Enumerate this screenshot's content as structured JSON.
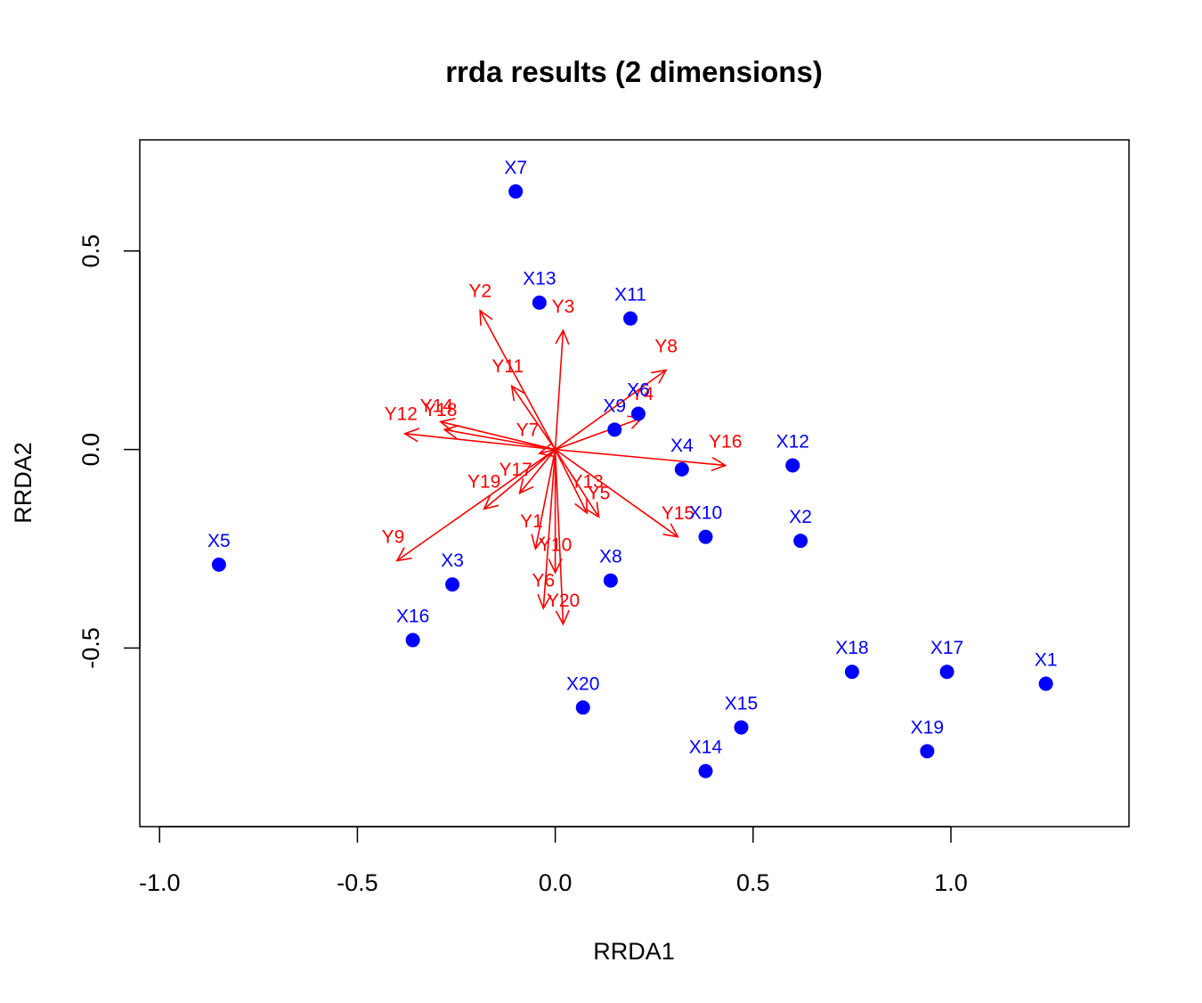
{
  "chart_data": {
    "type": "scatter",
    "title": "rrda results (2 dimensions)",
    "xlabel": "RRDA1",
    "ylabel": "RRDA2",
    "xlim": [
      -1.05,
      1.45
    ],
    "ylim": [
      -0.95,
      0.78
    ],
    "x_ticks": [
      -1.0,
      -0.5,
      0.0,
      0.5,
      1.0
    ],
    "x_tick_labels": [
      "-1.0",
      "-0.5",
      "0.0",
      "0.5",
      "1.0"
    ],
    "y_ticks": [
      -0.5,
      0.0,
      0.5
    ],
    "y_tick_labels": [
      "-0.5",
      "0.0",
      "0.5"
    ],
    "grid": false,
    "colors": {
      "points": "#0000ff",
      "arrows": "#ff0000",
      "frame": "#000000"
    },
    "points": [
      {
        "label": "X1",
        "x": 1.24,
        "y": -0.59
      },
      {
        "label": "X2",
        "x": 0.62,
        "y": -0.23
      },
      {
        "label": "X3",
        "x": -0.26,
        "y": -0.34
      },
      {
        "label": "X4",
        "x": 0.32,
        "y": -0.05
      },
      {
        "label": "X5",
        "x": -0.85,
        "y": -0.29
      },
      {
        "label": "X6",
        "x": 0.21,
        "y": 0.09
      },
      {
        "label": "X7",
        "x": -0.1,
        "y": 0.65
      },
      {
        "label": "X8",
        "x": 0.14,
        "y": -0.33
      },
      {
        "label": "X9",
        "x": 0.15,
        "y": 0.05
      },
      {
        "label": "X10",
        "x": 0.38,
        "y": -0.22
      },
      {
        "label": "X11",
        "x": 0.19,
        "y": 0.33
      },
      {
        "label": "X12",
        "x": 0.6,
        "y": -0.04
      },
      {
        "label": "X13",
        "x": -0.04,
        "y": 0.37
      },
      {
        "label": "X14",
        "x": 0.38,
        "y": -0.81
      },
      {
        "label": "X15",
        "x": 0.47,
        "y": -0.7
      },
      {
        "label": "X16",
        "x": -0.36,
        "y": -0.48
      },
      {
        "label": "X17",
        "x": 0.99,
        "y": -0.56
      },
      {
        "label": "X18",
        "x": 0.75,
        "y": -0.56
      },
      {
        "label": "X19",
        "x": 0.94,
        "y": -0.76
      },
      {
        "label": "X20",
        "x": 0.07,
        "y": -0.65
      }
    ],
    "arrows": [
      {
        "label": "Y1",
        "x": -0.05,
        "y": -0.25,
        "lx": -0.06,
        "ly": -0.18
      },
      {
        "label": "Y2",
        "x": -0.19,
        "y": 0.35,
        "lx": -0.19,
        "ly": 0.4
      },
      {
        "label": "Y3",
        "x": 0.02,
        "y": 0.3,
        "lx": 0.02,
        "ly": 0.36
      },
      {
        "label": "Y4",
        "x": 0.22,
        "y": 0.08,
        "lx": 0.22,
        "ly": 0.14
      },
      {
        "label": "Y5",
        "x": 0.11,
        "y": -0.17,
        "lx": 0.11,
        "ly": -0.11
      },
      {
        "label": "Y6",
        "x": -0.03,
        "y": -0.4,
        "lx": -0.03,
        "ly": -0.33
      },
      {
        "label": "Y7",
        "x": -0.04,
        "y": -0.01,
        "lx": -0.07,
        "ly": 0.05
      },
      {
        "label": "Y8",
        "x": 0.28,
        "y": 0.2,
        "lx": 0.28,
        "ly": 0.26
      },
      {
        "label": "Y9",
        "x": -0.4,
        "y": -0.28,
        "lx": -0.41,
        "ly": -0.22
      },
      {
        "label": "Y10",
        "x": 0.0,
        "y": -0.31,
        "lx": 0.0,
        "ly": -0.24
      },
      {
        "label": "Y11",
        "x": -0.11,
        "y": 0.16,
        "lx": -0.12,
        "ly": 0.21
      },
      {
        "label": "Y12",
        "x": -0.38,
        "y": 0.04,
        "lx": -0.39,
        "ly": 0.09
      },
      {
        "label": "Y13",
        "x": 0.08,
        "y": -0.16,
        "lx": 0.08,
        "ly": -0.08
      },
      {
        "label": "Y14",
        "x": -0.29,
        "y": 0.07,
        "lx": -0.3,
        "ly": 0.11
      },
      {
        "label": "Y15",
        "x": 0.31,
        "y": -0.22,
        "lx": 0.31,
        "ly": -0.16
      },
      {
        "label": "Y16",
        "x": 0.43,
        "y": -0.04,
        "lx": 0.43,
        "ly": 0.02
      },
      {
        "label": "Y17",
        "x": -0.09,
        "y": -0.11,
        "lx": -0.1,
        "ly": -0.05
      },
      {
        "label": "Y18",
        "x": -0.28,
        "y": 0.05,
        "lx": -0.29,
        "ly": 0.1
      },
      {
        "label": "Y19",
        "x": -0.18,
        "y": -0.15,
        "lx": -0.18,
        "ly": -0.08
      },
      {
        "label": "Y20",
        "x": 0.02,
        "y": -0.44,
        "lx": 0.02,
        "ly": -0.38
      }
    ]
  }
}
